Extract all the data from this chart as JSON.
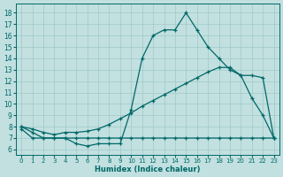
{
  "xlabel": "Humidex (Indice chaleur)",
  "bg_color": "#c2e0e0",
  "grid_color": "#9fc9c9",
  "line_color": "#006868",
  "x_ticks": [
    0,
    1,
    2,
    3,
    4,
    5,
    6,
    7,
    8,
    9,
    10,
    11,
    12,
    13,
    14,
    15,
    16,
    17,
    18,
    19,
    20,
    21,
    22,
    23
  ],
  "y_ticks": [
    6,
    7,
    8,
    9,
    10,
    11,
    12,
    13,
    14,
    15,
    16,
    17,
    18
  ],
  "xlim": [
    -0.5,
    23.5
  ],
  "ylim": [
    5.5,
    18.8
  ],
  "curve1_x": [
    0,
    1,
    2,
    3,
    4,
    5,
    6,
    7,
    8,
    9,
    10,
    11,
    12,
    13,
    14,
    15,
    16,
    17,
    18,
    19,
    20,
    21,
    22,
    23
  ],
  "curve1_y": [
    8.0,
    7.5,
    7.0,
    7.0,
    7.0,
    6.5,
    6.3,
    6.5,
    6.5,
    6.5,
    9.5,
    14.0,
    16.0,
    16.5,
    16.5,
    18.0,
    16.5,
    15.0,
    14.0,
    13.0,
    12.5,
    10.5,
    9.0,
    7.0
  ],
  "curve2_x": [
    0,
    1,
    2,
    3,
    4,
    5,
    6,
    7,
    8,
    9,
    10,
    11,
    12,
    13,
    14,
    15,
    16,
    17,
    18,
    19,
    20,
    21,
    22,
    23
  ],
  "curve2_y": [
    8.0,
    7.8,
    7.5,
    7.3,
    7.5,
    7.5,
    7.6,
    7.8,
    8.2,
    8.7,
    9.2,
    9.8,
    10.3,
    10.8,
    11.3,
    11.8,
    12.3,
    12.8,
    13.2,
    13.2,
    12.5,
    12.5,
    12.3,
    7.0
  ],
  "curve3_x": [
    0,
    1,
    2,
    3,
    4,
    5,
    6,
    7,
    8,
    9,
    10,
    11,
    12,
    13,
    14,
    15,
    16,
    17,
    18,
    19,
    20,
    21,
    22,
    23
  ],
  "curve3_y": [
    7.8,
    7.0,
    7.0,
    7.0,
    7.0,
    7.0,
    7.0,
    7.0,
    7.0,
    7.0,
    7.0,
    7.0,
    7.0,
    7.0,
    7.0,
    7.0,
    7.0,
    7.0,
    7.0,
    7.0,
    7.0,
    7.0,
    7.0,
    7.0
  ]
}
